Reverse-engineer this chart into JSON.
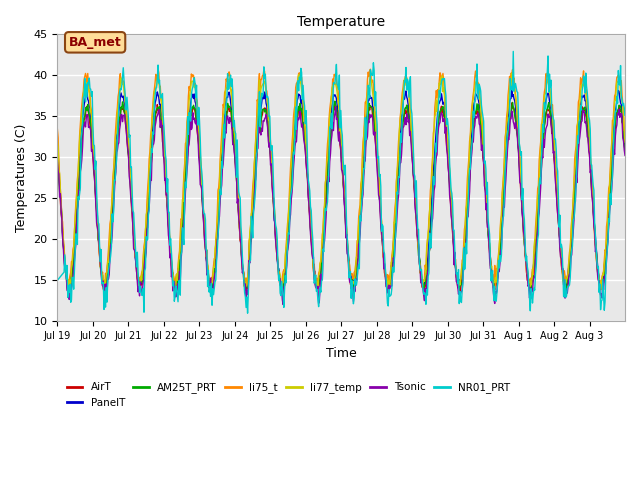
{
  "title": "Temperature",
  "xlabel": "Time",
  "ylabel": "Temperatures (C)",
  "ylim": [
    10,
    45
  ],
  "plot_bg_color": "#e8e8e8",
  "grid_color": "white",
  "annotation_text": "BA_met",
  "annotation_box_color": "#ffdd99",
  "annotation_border_color": "#8B4513",
  "series_colors": {
    "AirT": "#cc0000",
    "PanelT": "#0000cc",
    "AM25T_PRT": "#00aa00",
    "li75_t": "#ff8800",
    "li77_temp": "#cccc00",
    "Tsonic": "#8800aa",
    "NR01_PRT": "#00cccc"
  },
  "legend_order": [
    "AirT",
    "PanelT",
    "AM25T_PRT",
    "li75_t",
    "li77_temp",
    "Tsonic",
    "NR01_PRT"
  ],
  "x_tick_labels": [
    "Jul 19",
    "Jul 20",
    "Jul 21",
    "Jul 22",
    "Jul 23",
    "Jul 24",
    "Jul 25",
    "Jul 26",
    "Jul 27",
    "Jul 28",
    "Jul 29",
    "Jul 30",
    "Jul 31",
    "Aug 1",
    "Aug 2",
    "Aug 3"
  ],
  "yticks": [
    10,
    15,
    20,
    25,
    30,
    35,
    40,
    45
  ]
}
